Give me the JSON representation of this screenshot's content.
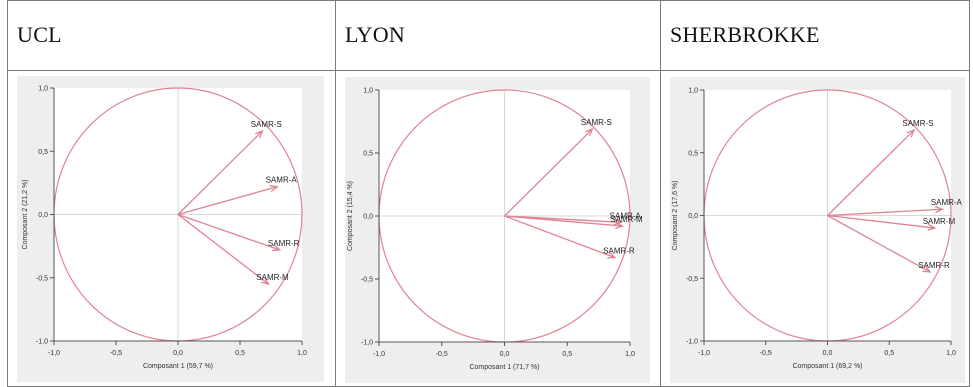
{
  "table": {
    "headers": [
      "UCL",
      "LYON",
      "SHERBROKKE"
    ]
  },
  "colors": {
    "vector": "#e08393",
    "circle": "#e08393",
    "axis": "#555555",
    "grid": "#d8d8d8",
    "plot_bg": "#eeeeee",
    "label": "#333333"
  },
  "chart_data": [
    {
      "type": "scatter",
      "subtype": "correlation-circle",
      "title": "UCL",
      "xlabel": "Composant 1  (59,7 %)",
      "ylabel": "Composant 2  (21,2 %)",
      "xlim": [
        -1.0,
        1.0
      ],
      "ylim": [
        -1.0,
        1.0
      ],
      "xticks": [
        "-1,0",
        "-0,5",
        "0,0",
        "0,5",
        "1,0"
      ],
      "yticks": [
        "1,0",
        "0,5",
        "0,0",
        "-0,5",
        "-1,0"
      ],
      "vectors": [
        {
          "label": "SAMR-S",
          "x": 0.68,
          "y": 0.66
        },
        {
          "label": "SAMR-A",
          "x": 0.8,
          "y": 0.22
        },
        {
          "label": "SAMR-R",
          "x": 0.82,
          "y": -0.28
        },
        {
          "label": "SAMR-M",
          "x": 0.73,
          "y": -0.55
        }
      ],
      "grid": true
    },
    {
      "type": "scatter",
      "subtype": "correlation-circle",
      "title": "LYON",
      "xlabel": "Composant 1  (71,7 %)",
      "ylabel": "Composant 2  (15,4 %)",
      "xlim": [
        -1.0,
        1.0
      ],
      "ylim": [
        -1.0,
        1.0
      ],
      "xticks": [
        "-1,0",
        "-0,5",
        "0,0",
        "0,5",
        "1,0"
      ],
      "yticks": [
        "1,0",
        "0,5",
        "0,0",
        "-0,5",
        "-1,0"
      ],
      "vectors": [
        {
          "label": "SAMR-S",
          "x": 0.7,
          "y": 0.69
        },
        {
          "label": "SAMR-A",
          "x": 0.93,
          "y": -0.05
        },
        {
          "label": "SAMR-M",
          "x": 0.94,
          "y": -0.08
        },
        {
          "label": "SAMR-R",
          "x": 0.88,
          "y": -0.33
        }
      ],
      "grid": true
    },
    {
      "type": "scatter",
      "subtype": "correlation-circle",
      "title": "SHERBROKKE",
      "xlabel": "Composant 1  (69,2 %)",
      "ylabel": "Composant 2  (17,6 %)",
      "xlim": [
        -1.0,
        1.0
      ],
      "ylim": [
        -1.0,
        1.0
      ],
      "xticks": [
        "-1,0",
        "-0,5",
        "0,0",
        "0,5",
        "1,0"
      ],
      "yticks": [
        "1,0",
        "0,5",
        "0,0",
        "-0,5",
        "-1,0"
      ],
      "vectors": [
        {
          "label": "SAMR-S",
          "x": 0.7,
          "y": 0.68
        },
        {
          "label": "SAMR-A",
          "x": 0.93,
          "y": 0.05
        },
        {
          "label": "SAMR-M",
          "x": 0.87,
          "y": -0.1
        },
        {
          "label": "SAMR-R",
          "x": 0.83,
          "y": -0.45
        }
      ],
      "grid": true
    }
  ]
}
